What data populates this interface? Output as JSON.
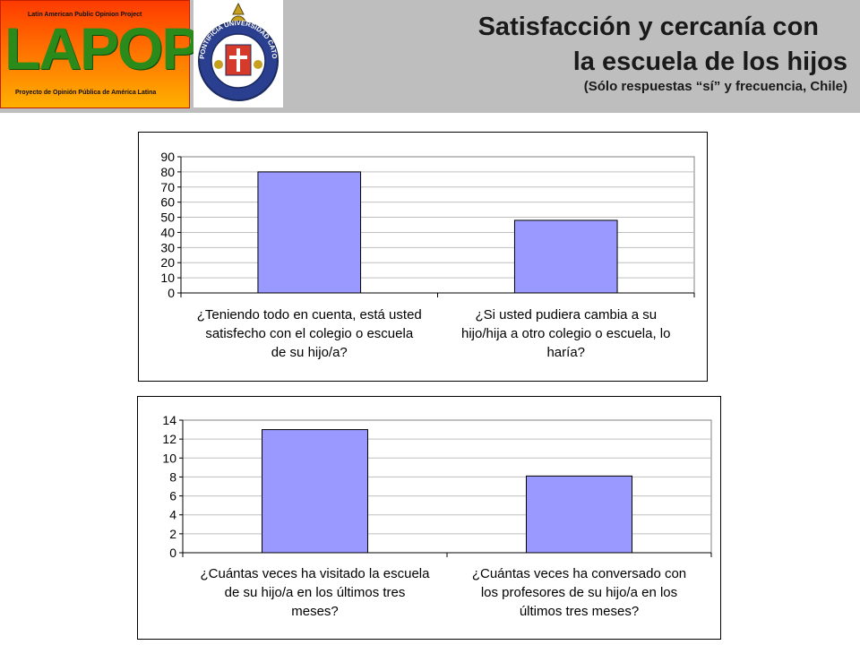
{
  "header": {
    "title_line1": "Satisfacción y cercanía con",
    "title_line2": "la escuela de los hijos",
    "subtitle": "(Sólo respuestas “sí” y frecuencia, Chile)",
    "logo_lapop": {
      "top_text": "Latin American Public Opinion Project",
      "main_text": "LAPOP",
      "bottom_text": "Proyecto de Opinión Pública de América Latina"
    },
    "seal": {
      "ring_text": "PONTIFICIA UNIVERSIDAD CATOLICA DE CHILE",
      "icon": "university-seal-icon"
    }
  },
  "chart_data": [
    {
      "type": "bar",
      "categories": [
        [
          "¿Teniendo todo en cuenta, está usted",
          "satisfecho con el colegio o escuela",
          "de su hijo/a?"
        ],
        [
          "¿Si usted pudiera cambia a su",
          "hijo/hija a otro colegio o escuela, lo",
          "haría?"
        ]
      ],
      "values": [
        80,
        48
      ],
      "ylim": [
        0,
        90
      ],
      "yticks": [
        0,
        10,
        20,
        30,
        40,
        50,
        60,
        70,
        80,
        90
      ],
      "grid": true,
      "bar_color": "#9999ff",
      "title": "",
      "xlabel": "",
      "ylabel": ""
    },
    {
      "type": "bar",
      "categories": [
        [
          "¿Cuántas veces ha visitado la escuela",
          "de su hijo/a en los últimos tres",
          "meses?"
        ],
        [
          "¿Cuántas veces ha conversado con",
          "los profesores de su hijo/a en los",
          "últimos tres meses?"
        ]
      ],
      "values": [
        13,
        8.1
      ],
      "ylim": [
        0,
        14
      ],
      "yticks": [
        0,
        2,
        4,
        6,
        8,
        10,
        12,
        14
      ],
      "grid": true,
      "bar_color": "#9999ff",
      "title": "",
      "xlabel": "",
      "ylabel": ""
    }
  ]
}
